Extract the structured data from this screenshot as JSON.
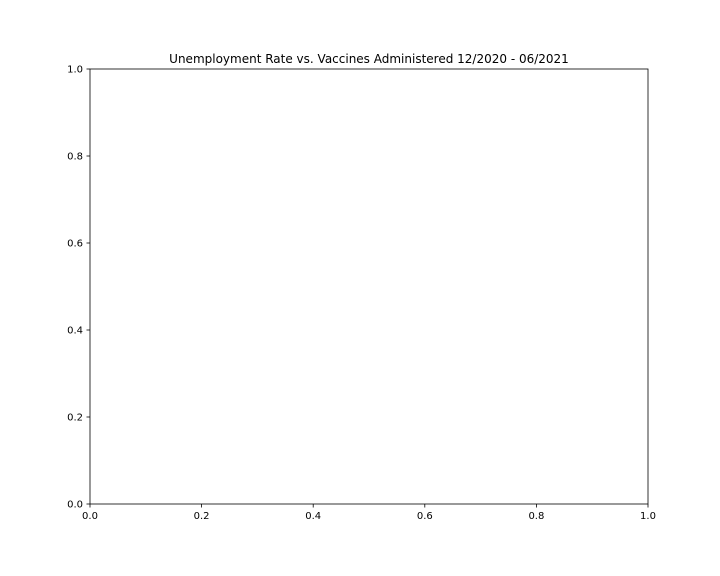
{
  "chart_data": {
    "type": "scatter",
    "title": "Unemployment Rate vs. Vaccines Administered 12/2020 - 06/2021",
    "xlabel": "",
    "ylabel": "",
    "xlim": [
      0.0,
      1.0
    ],
    "ylim": [
      0.0,
      1.0
    ],
    "xticks": [
      0.0,
      0.2,
      0.4,
      0.6,
      0.8,
      1.0
    ],
    "yticks": [
      0.0,
      0.2,
      0.4,
      0.6,
      0.8,
      1.0
    ],
    "xtick_labels": [
      "0.0",
      "0.2",
      "0.4",
      "0.6",
      "0.8",
      "1.0"
    ],
    "ytick_labels": [
      "0.0",
      "0.2",
      "0.4",
      "0.6",
      "0.8",
      "1.0"
    ],
    "series": [],
    "grid": false,
    "legend": "none",
    "colors": {
      "axes": "#000000",
      "background": "#ffffff"
    }
  }
}
